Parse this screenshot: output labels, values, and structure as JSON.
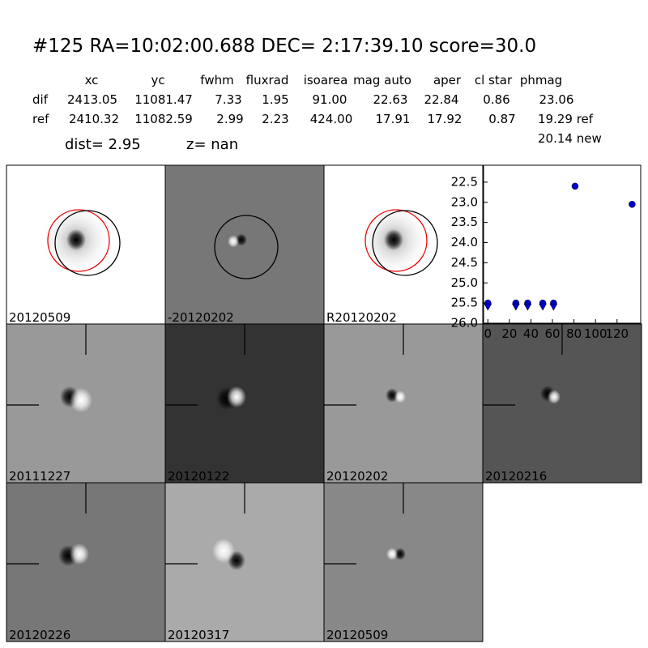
{
  "header": {
    "title": "#125   RA=10:02:00.688 DEC= 2:17:39.10       score=30.0"
  },
  "table": {
    "columns": [
      "xc",
      "yc",
      "fwhm",
      "fluxrad",
      "isoarea",
      "mag auto",
      "aper",
      "cl star",
      "phmag"
    ],
    "rows": [
      [
        "dif",
        "2413.05",
        "11081.47",
        "7.33",
        "1.95",
        "91.00",
        "22.63",
        "22.84",
        "0.86",
        "23.06"
      ],
      [
        "ref",
        "2410.32",
        "11082.59",
        "2.99",
        "2.23",
        "424.00",
        "17.91",
        "17.92",
        "0.87",
        "19.29 ref"
      ]
    ],
    "extra": "20.14 new"
  },
  "dist": "dist=  2.95",
  "z": "z=   nan",
  "panels": [
    {
      "label": "20120509"
    },
    {
      "label": "-20120202"
    },
    {
      "label": "R20120202"
    },
    {
      "label": "20111227"
    },
    {
      "label": "20120122"
    },
    {
      "label": "20120202"
    },
    {
      "label": "20120216"
    },
    {
      "label": "20120226"
    },
    {
      "label": "20120317"
    },
    {
      "label": "20120509",
      "label_color": "#ff0000"
    }
  ],
  "chart_data": {
    "type": "scatter",
    "xlim": [
      -4,
      142
    ],
    "ylim": [
      26.0,
      22.08
    ],
    "xticks": [
      0,
      20,
      40,
      60,
      80,
      100,
      120
    ],
    "yticks": [
      {
        "value": 26.0,
        "label": "26.0"
      },
      25.5,
      {
        "value": 25.0,
        "label": "25.0"
      },
      24.5,
      {
        "value": 24.0,
        "label": "24.0"
      },
      23.5,
      {
        "value": 23.0,
        "label": "23.0"
      },
      22.5
    ],
    "series": [
      {
        "marker": "circle",
        "color": "#0000cc",
        "x": [
          0,
          26,
          37,
          51,
          61,
          81,
          134
        ],
        "values": [
          25.5,
          25.5,
          25.5,
          25.5,
          25.5,
          22.6,
          23.05
        ]
      },
      {
        "marker": "triangle-down",
        "color": "#0000cc",
        "x": [
          0,
          26,
          37,
          51,
          61
        ],
        "values": [
          25.6,
          25.6,
          25.6,
          25.6,
          25.6
        ]
      }
    ]
  }
}
